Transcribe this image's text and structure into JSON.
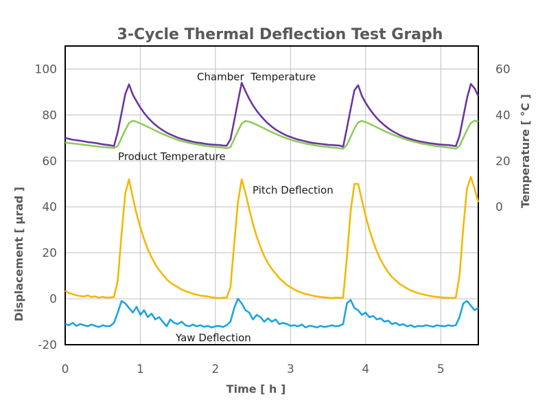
{
  "chart_data": {
    "type": "line",
    "title": "3-Cycle Thermal Deflection Test Graph",
    "xlabel": "Time [ h ]",
    "ylabel": "Displacement [ μrad ]",
    "y2label": "Temperature [ °C ]",
    "xlim": [
      0,
      5.5
    ],
    "ylim": [
      -20,
      110
    ],
    "y2_offset_note": "right axis temperature = left value - 40",
    "xticks": [
      "0",
      "1",
      "2",
      "3",
      "4",
      "5"
    ],
    "yticks": [
      "-20",
      "0",
      "20",
      "40",
      "60",
      "80",
      "100"
    ],
    "y2ticks": [
      "0",
      "20",
      "40",
      "60"
    ],
    "grid": true,
    "legend": "none (inline annotations)",
    "annotations": [
      {
        "text": "Chamber  Temperature",
        "series": "chamber"
      },
      {
        "text": "Product Temperature",
        "series": "product"
      },
      {
        "text": "Pitch Deflection",
        "series": "pitch"
      },
      {
        "text": "Yaw Deflection",
        "series": "yaw"
      }
    ],
    "x_step": 0.05,
    "series": [
      {
        "name": "Chamber Temperature",
        "key": "chamber",
        "color": "#6a35a0",
        "values": [
          70,
          69.6,
          69.2,
          69,
          68.8,
          68.5,
          68.2,
          68,
          67.8,
          67.5,
          67.2,
          67,
          66.8,
          66.5,
          72.6,
          80.8,
          89.1,
          93.3,
          88.9,
          85.9,
          83.2,
          80.9,
          78.9,
          77.2,
          75.7,
          74.4,
          73.3,
          72.3,
          71.5,
          70.8,
          70.1,
          69.6,
          69.1,
          68.7,
          68.3,
          68,
          67.8,
          67.5,
          67.3,
          67.1,
          67,
          66.9,
          66.7,
          66.6,
          69.3,
          77.5,
          85.8,
          94,
          90.3,
          87,
          84.2,
          81.8,
          79.7,
          77.9,
          76.3,
          74.9,
          73.7,
          72.7,
          71.8,
          71,
          70.4,
          69.8,
          69.3,
          68.9,
          68.5,
          68.1,
          67.8,
          67.6,
          67.4,
          67.2,
          67,
          66.9,
          66.8,
          66.7,
          66.2,
          74.2,
          82.5,
          90.7,
          92.9,
          88.3,
          85.3,
          82.7,
          80.5,
          78.6,
          76.9,
          75.5,
          74.2,
          73.1,
          72.2,
          71.3,
          70.6,
          70,
          69.5,
          69,
          68.6,
          68.3,
          68,
          67.7,
          67.5,
          67.3,
          67.1,
          67,
          66.9,
          66.7,
          66.4,
          70.9,
          79.2,
          87.4,
          93.5,
          91.6,
          88.2
        ]
      },
      {
        "name": "Product Temperature",
        "key": "product",
        "color": "#8fcc5a",
        "values": [
          68,
          67.8,
          67.6,
          67.4,
          67.2,
          67,
          66.8,
          66.6,
          66.4,
          66.2,
          66,
          65.9,
          65.8,
          65.6,
          66.5,
          70,
          73.5,
          76.5,
          77.5,
          77,
          76.3,
          75.6,
          74.8,
          74,
          73.2,
          72.4,
          71.7,
          71,
          70.3,
          69.7,
          69.1,
          68.6,
          68.2,
          67.8,
          67.5,
          67.2,
          66.9,
          66.6,
          66.4,
          66.2,
          66,
          65.9,
          65.7,
          65.5,
          66,
          69.5,
          73,
          76.2,
          77.4,
          77,
          76.4,
          75.7,
          74.9,
          74.1,
          73.3,
          72.5,
          71.8,
          71.1,
          70.4,
          69.8,
          69.2,
          68.7,
          68.3,
          67.9,
          67.5,
          67.2,
          66.9,
          66.6,
          66.4,
          66.2,
          66,
          65.8,
          65.7,
          65.5,
          65.3,
          67,
          70.5,
          74,
          76.8,
          77.4,
          76.9,
          76.2,
          75.4,
          74.6,
          73.8,
          73,
          72.3,
          71.6,
          70.9,
          70.3,
          69.7,
          69.2,
          68.7,
          68.3,
          67.9,
          67.5,
          67.2,
          66.9,
          66.6,
          66.4,
          66.2,
          66,
          65.8,
          65.6,
          65.3,
          66.5,
          70,
          73.5,
          76.5,
          77.5,
          77.2
        ]
      },
      {
        "name": "Pitch Deflection",
        "key": "pitch",
        "color": "#f5b800",
        "values": [
          3.5,
          2.5,
          2,
          1.5,
          1.2,
          1,
          1.5,
          0.8,
          1,
          0.5,
          0.8,
          0.5,
          0.6,
          0.8,
          8,
          28,
          46,
          52,
          44,
          37,
          31,
          26,
          21.5,
          18,
          15,
          12.5,
          10.5,
          8.5,
          7,
          6,
          5,
          4,
          3.3,
          2.8,
          2.2,
          1.8,
          1.4,
          1.2,
          1,
          0.6,
          0.4,
          0.3,
          0.5,
          0.4,
          5,
          24,
          42,
          52,
          46,
          39,
          32.5,
          27,
          22.5,
          18.5,
          15.5,
          13,
          11,
          9,
          7.5,
          6,
          5,
          4,
          3.2,
          2.6,
          2.1,
          1.7,
          1.3,
          1,
          0.8,
          0.6,
          0.4,
          0.3,
          0.5,
          0.4,
          0.5,
          18,
          38,
          50,
          50,
          43,
          36,
          30,
          25,
          20.5,
          17,
          14,
          11.5,
          9.5,
          8,
          6.5,
          5.5,
          4.5,
          3.6,
          3,
          2.4,
          2,
          1.6,
          1.3,
          1,
          0.8,
          0.6,
          0.5,
          0.4,
          0.3,
          0.5,
          10,
          31,
          48,
          53,
          48,
          42
        ]
      },
      {
        "name": "Yaw Deflection",
        "key": "yaw",
        "color": "#1aa4e0",
        "values": [
          -11,
          -11.5,
          -10.5,
          -11.8,
          -11,
          -11.5,
          -12,
          -11.2,
          -11.8,
          -12.3,
          -11.5,
          -12,
          -11.8,
          -10.5,
          -6,
          -1,
          -2,
          -4,
          -6,
          -3.5,
          -7,
          -5,
          -8,
          -6.5,
          -9,
          -8,
          -10,
          -12,
          -9,
          -10.5,
          -11,
          -10,
          -11.5,
          -12,
          -11.2,
          -12,
          -11.5,
          -12.2,
          -11.8,
          -12.5,
          -12,
          -11.8,
          -12.3,
          -11.5,
          -10,
          -4,
          0,
          -2,
          -5,
          -6,
          -9,
          -7,
          -8,
          -10,
          -8.5,
          -10,
          -9,
          -11,
          -10.5,
          -11,
          -11.8,
          -11.5,
          -12,
          -11.2,
          -12.5,
          -11.8,
          -12,
          -12.5,
          -11.8,
          -12.3,
          -12,
          -11.5,
          -12,
          -11.8,
          -11,
          -2,
          -0.5,
          -4,
          -5,
          -7,
          -6,
          -8,
          -7.5,
          -9,
          -8.5,
          -10,
          -9.5,
          -11,
          -10.5,
          -11.5,
          -11,
          -12,
          -11.5,
          -12.3,
          -11.8,
          -12,
          -11.5,
          -11.8,
          -12.2,
          -11.5,
          -11.8,
          -12,
          -11.5,
          -11.8,
          -11.5,
          -8,
          -2,
          -1,
          -3,
          -5,
          -4
        ]
      }
    ]
  }
}
